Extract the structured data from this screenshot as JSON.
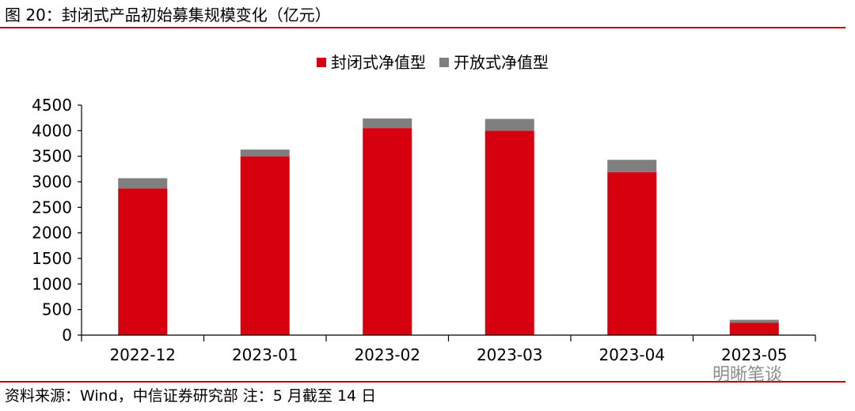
{
  "figure": {
    "title": "图 20：封闭式产品初始募集规模变化（亿元）",
    "source": "资料来源：Wind，中信证券研究部 注：5 月截至 14 日",
    "watermark": "明晰笔谈"
  },
  "colors": {
    "rule": "#c00000",
    "closed": "#d7000f",
    "open": "#7f7f7f"
  },
  "chart_data": {
    "type": "bar",
    "stacked": true,
    "categories": [
      "2022-12",
      "2023-01",
      "2023-02",
      "2023-03",
      "2023-04",
      "2023-05"
    ],
    "series": [
      {
        "name": "封闭式净值型",
        "color": "#d7000f",
        "values": [
          2870,
          3500,
          4050,
          4000,
          3190,
          240
        ]
      },
      {
        "name": "开放式净值型",
        "color": "#7f7f7f",
        "values": [
          200,
          130,
          190,
          230,
          240,
          60
        ]
      }
    ],
    "ylim": [
      0,
      4500
    ],
    "yticks": [
      0,
      500,
      1000,
      1500,
      2000,
      2500,
      3000,
      3500,
      4000,
      4500
    ],
    "legend": "top-center",
    "grid": false
  }
}
